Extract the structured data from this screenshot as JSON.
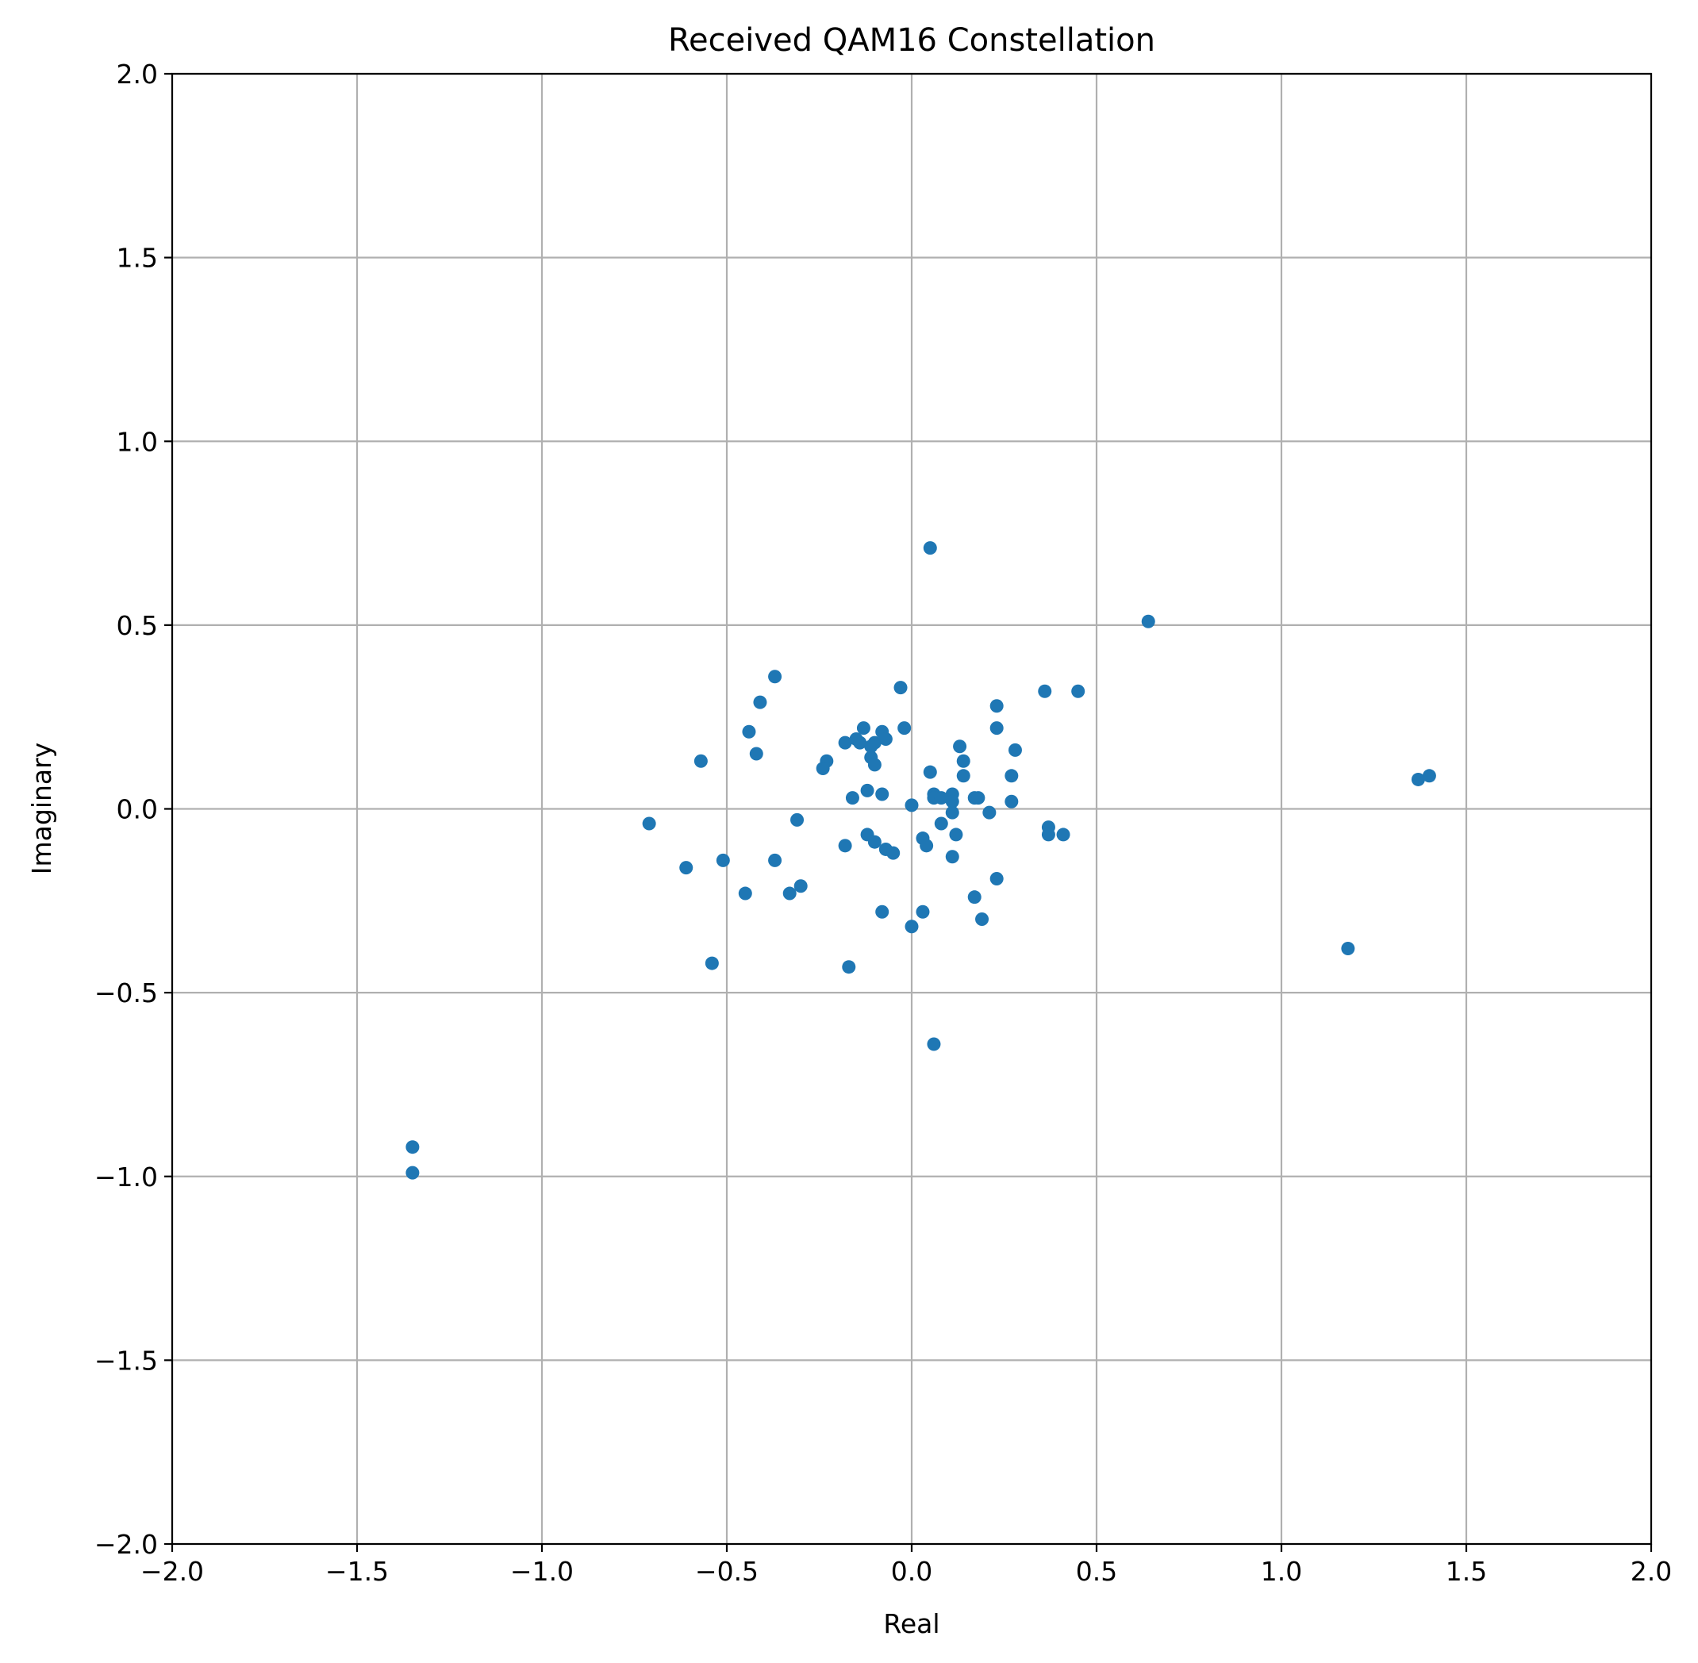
{
  "chart_data": {
    "type": "scatter",
    "title": "Received QAM16 Constellation",
    "xlabel": "Real",
    "ylabel": "Imaginary",
    "xlim": [
      -2.0,
      2.0
    ],
    "ylim": [
      -2.0,
      2.0
    ],
    "x_ticks": [
      "−2.0",
      "−1.5",
      "−1.0",
      "−0.5",
      "0.0",
      "0.5",
      "1.0",
      "1.5",
      "2.0"
    ],
    "y_ticks": [
      "−2.0",
      "−1.5",
      "−1.0",
      "−0.5",
      "0.0",
      "0.5",
      "1.0",
      "1.5",
      "2.0"
    ],
    "grid": true,
    "color": "#1f77b4",
    "points": [
      [
        0.05,
        0.71
      ],
      [
        0.64,
        0.51
      ],
      [
        -0.37,
        0.36
      ],
      [
        -0.03,
        0.33
      ],
      [
        0.36,
        0.32
      ],
      [
        0.45,
        0.32
      ],
      [
        -0.41,
        0.29
      ],
      [
        0.23,
        0.28
      ],
      [
        -0.44,
        0.21
      ],
      [
        -0.13,
        0.22
      ],
      [
        -0.08,
        0.21
      ],
      [
        -0.02,
        0.22
      ],
      [
        0.23,
        0.22
      ],
      [
        -0.15,
        0.19
      ],
      [
        -0.1,
        0.18
      ],
      [
        -0.07,
        0.19
      ],
      [
        -0.18,
        0.18
      ],
      [
        -0.14,
        0.18
      ],
      [
        -0.11,
        0.17
      ],
      [
        0.13,
        0.17
      ],
      [
        0.28,
        0.16
      ],
      [
        -0.42,
        0.15
      ],
      [
        -0.57,
        0.13
      ],
      [
        -0.11,
        0.14
      ],
      [
        -0.1,
        0.12
      ],
      [
        0.14,
        0.13
      ],
      [
        -0.23,
        0.13
      ],
      [
        -0.24,
        0.11
      ],
      [
        0.05,
        0.1
      ],
      [
        0.27,
        0.09
      ],
      [
        0.14,
        0.09
      ],
      [
        -0.12,
        0.05
      ],
      [
        -0.08,
        0.04
      ],
      [
        0.06,
        0.04
      ],
      [
        0.11,
        0.04
      ],
      [
        -0.16,
        0.03
      ],
      [
        0.06,
        0.03
      ],
      [
        0.08,
        0.03
      ],
      [
        0.17,
        0.03
      ],
      [
        0.18,
        0.03
      ],
      [
        0.27,
        0.02
      ],
      [
        0.0,
        0.01
      ],
      [
        0.11,
        0.02
      ],
      [
        0.11,
        -0.01
      ],
      [
        0.21,
        -0.01
      ],
      [
        1.37,
        0.08
      ],
      [
        1.4,
        0.09
      ],
      [
        -0.71,
        -0.04
      ],
      [
        -0.31,
        -0.03
      ],
      [
        0.08,
        -0.04
      ],
      [
        0.37,
        -0.05
      ],
      [
        0.37,
        -0.07
      ],
      [
        0.41,
        -0.07
      ],
      [
        0.12,
        -0.07
      ],
      [
        -0.12,
        -0.07
      ],
      [
        -0.1,
        -0.09
      ],
      [
        -0.07,
        -0.11
      ],
      [
        -0.05,
        -0.12
      ],
      [
        -0.18,
        -0.1
      ],
      [
        0.03,
        -0.08
      ],
      [
        0.04,
        -0.1
      ],
      [
        0.11,
        -0.13
      ],
      [
        -0.51,
        -0.14
      ],
      [
        -0.37,
        -0.14
      ],
      [
        -0.61,
        -0.16
      ],
      [
        0.23,
        -0.19
      ],
      [
        -0.3,
        -0.21
      ],
      [
        -0.33,
        -0.23
      ],
      [
        -0.45,
        -0.23
      ],
      [
        0.17,
        -0.24
      ],
      [
        -0.08,
        -0.28
      ],
      [
        0.03,
        -0.28
      ],
      [
        0.19,
        -0.3
      ],
      [
        0.0,
        -0.32
      ],
      [
        -0.54,
        -0.42
      ],
      [
        -0.17,
        -0.43
      ],
      [
        1.18,
        -0.38
      ],
      [
        0.06,
        -0.64
      ],
      [
        -1.35,
        -0.92
      ],
      [
        -1.35,
        -0.99
      ]
    ]
  }
}
